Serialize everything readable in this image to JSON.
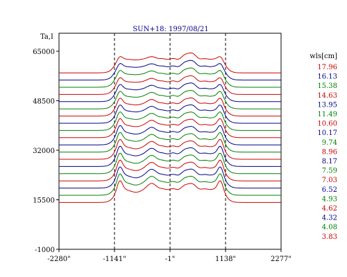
{
  "chart_data": {
    "type": "line",
    "title": "SUN+18: 1997/08/21",
    "ylabel": "Ta,I",
    "legend_title": "wls[cm]",
    "legend_placement": "right",
    "xlim": [
      -2280,
      2277
    ],
    "ylim": [
      -1000,
      71000
    ],
    "x_ticks": [
      {
        "value": -2280,
        "label": "-2280\""
      },
      {
        "value": -1141,
        "label": "-1141\""
      },
      {
        "value": -1,
        "label": "-1\""
      },
      {
        "value": 1138,
        "label": "1138\""
      },
      {
        "value": 2277,
        "label": "2277\""
      }
    ],
    "y_ticks": [
      {
        "value": 65000,
        "label": "65000"
      },
      {
        "value": 48500,
        "label": "48500"
      },
      {
        "value": 32000,
        "label": "32000"
      },
      {
        "value": 15500,
        "label": "15500"
      },
      {
        "value": -1000,
        "label": "-1000"
      }
    ],
    "vlines": [
      -1141,
      -1,
      1138
    ],
    "colors": {
      "red": "#cc0000",
      "blue": "#00008b",
      "green": "#008000"
    },
    "x": [
      -2280,
      -1600,
      -1250,
      -1180,
      -1141,
      -1110,
      -1070,
      -1000,
      -900,
      -800,
      -700,
      -600,
      -500,
      -400,
      -300,
      -200,
      -100,
      0,
      100,
      200,
      300,
      350,
      400,
      450,
      500,
      550,
      600,
      700,
      800,
      900,
      1000,
      1070,
      1138,
      1180,
      1250,
      1600,
      2277
    ],
    "series": [
      {
        "name": "17.96",
        "color": "#cc0000",
        "baseline": 57800,
        "peak": 64600,
        "dip": 300,
        "bump": 1500
      },
      {
        "name": "16.13",
        "color": "#00008b",
        "baseline": 55400,
        "peak": 62100,
        "dip": 300,
        "bump": 1700
      },
      {
        "name": "15.38",
        "color": "#008000",
        "baseline": 53000,
        "peak": 59600,
        "dip": 300,
        "bump": 1900
      },
      {
        "name": "14.63",
        "color": "#cc0000",
        "baseline": 50600,
        "peak": 57000,
        "dip": 300,
        "bump": 2000
      },
      {
        "name": "13.95",
        "color": "#00008b",
        "baseline": 48200,
        "peak": 54600,
        "dip": 400,
        "bump": 2200
      },
      {
        "name": "11.49",
        "color": "#008000",
        "baseline": 45800,
        "peak": 52100,
        "dip": 400,
        "bump": 2400
      },
      {
        "name": "10.60",
        "color": "#cc0000",
        "baseline": 43400,
        "peak": 49600,
        "dip": 500,
        "bump": 2600
      },
      {
        "name": "10.17",
        "color": "#00008b",
        "baseline": 41000,
        "peak": 47300,
        "dip": 500,
        "bump": 2700
      },
      {
        "name": "9.74",
        "color": "#008000",
        "baseline": 38600,
        "peak": 44900,
        "dip": 600,
        "bump": 2800
      },
      {
        "name": "8.96",
        "color": "#cc0000",
        "baseline": 36200,
        "peak": 42500,
        "dip": 600,
        "bump": 3000
      },
      {
        "name": "8.17",
        "color": "#00008b",
        "baseline": 33800,
        "peak": 40100,
        "dip": 700,
        "bump": 3100
      },
      {
        "name": "7.59",
        "color": "#008000",
        "baseline": 31400,
        "peak": 37700,
        "dip": 700,
        "bump": 3200
      },
      {
        "name": "7.03",
        "color": "#cc0000",
        "baseline": 29000,
        "peak": 35300,
        "dip": 800,
        "bump": 3300
      },
      {
        "name": "6.52",
        "color": "#00008b",
        "baseline": 26600,
        "peak": 33000,
        "dip": 800,
        "bump": 3400
      },
      {
        "name": "4.93",
        "color": "#008000",
        "baseline": 24200,
        "peak": 30600,
        "dip": 900,
        "bump": 3500
      },
      {
        "name": "4.62",
        "color": "#cc0000",
        "baseline": 21800,
        "peak": 28200,
        "dip": 900,
        "bump": 3600
      },
      {
        "name": "4.32",
        "color": "#00008b",
        "baseline": 19400,
        "peak": 25900,
        "dip": 1000,
        "bump": 3700
      },
      {
        "name": "4.08",
        "color": "#008000",
        "baseline": 17000,
        "peak": 23500,
        "dip": 1000,
        "bump": 3800
      },
      {
        "name": "3.83",
        "color": "#cc0000",
        "baseline": 14600,
        "peak": 21100,
        "dip": 1000,
        "bump": 3900
      }
    ]
  }
}
